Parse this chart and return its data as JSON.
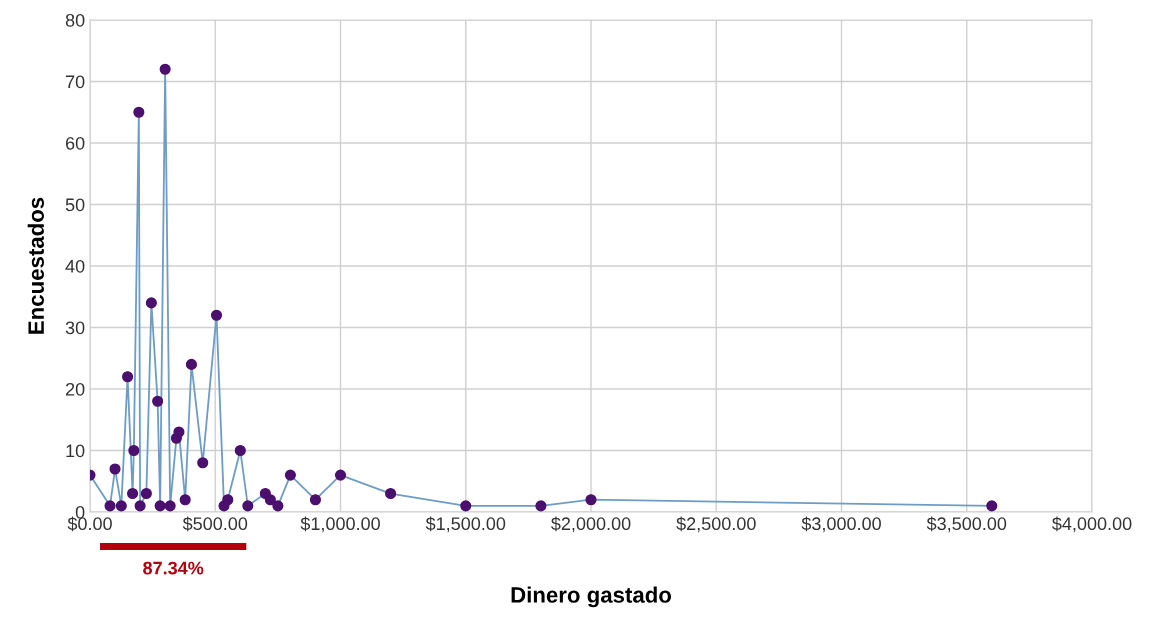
{
  "chart_data": {
    "type": "line",
    "xlabel": "Dinero gastado",
    "ylabel": "Encuestados",
    "x": [
      0,
      80,
      100,
      125,
      150,
      170,
      175,
      195,
      200,
      225,
      245,
      270,
      280,
      300,
      320,
      345,
      355,
      380,
      405,
      450,
      505,
      535,
      550,
      600,
      630,
      700,
      720,
      750,
      800,
      900,
      1000,
      1200,
      1500,
      1800,
      2000,
      3600
    ],
    "series": [
      {
        "color": "#6f9cc4",
        "values": [
          6,
          1,
          7,
          1,
          22,
          3,
          10,
          65,
          1,
          3,
          34,
          18,
          1,
          72,
          1,
          12,
          13,
          2,
          24,
          8,
          32,
          1,
          2,
          10,
          1,
          3,
          2,
          1,
          6,
          2,
          6,
          3,
          1,
          1,
          2,
          1
        ]
      }
    ],
    "marker": "circle",
    "grid": true,
    "xlim": [
      0,
      4000
    ],
    "xticks": [
      {
        "value": 0,
        "label": "$0.00"
      },
      {
        "value": 500,
        "label": "$500.00"
      },
      {
        "value": 1000,
        "label": "$1,000.00"
      },
      {
        "value": 1500,
        "label": "$1,500.00"
      },
      {
        "value": 2000,
        "label": "$2,000.00"
      },
      {
        "value": 2500,
        "label": "$2,500.00"
      },
      {
        "value": 3000,
        "label": "$3,000.00"
      },
      {
        "value": 3500,
        "label": "$3,500.00"
      },
      {
        "value": 4000,
        "label": "$4,000.00"
      }
    ],
    "ylim": [
      0,
      80
    ],
    "yticks": [
      0,
      10,
      20,
      30,
      40,
      50,
      60,
      70,
      80
    ],
    "annotations": [
      "87.34%"
    ]
  }
}
